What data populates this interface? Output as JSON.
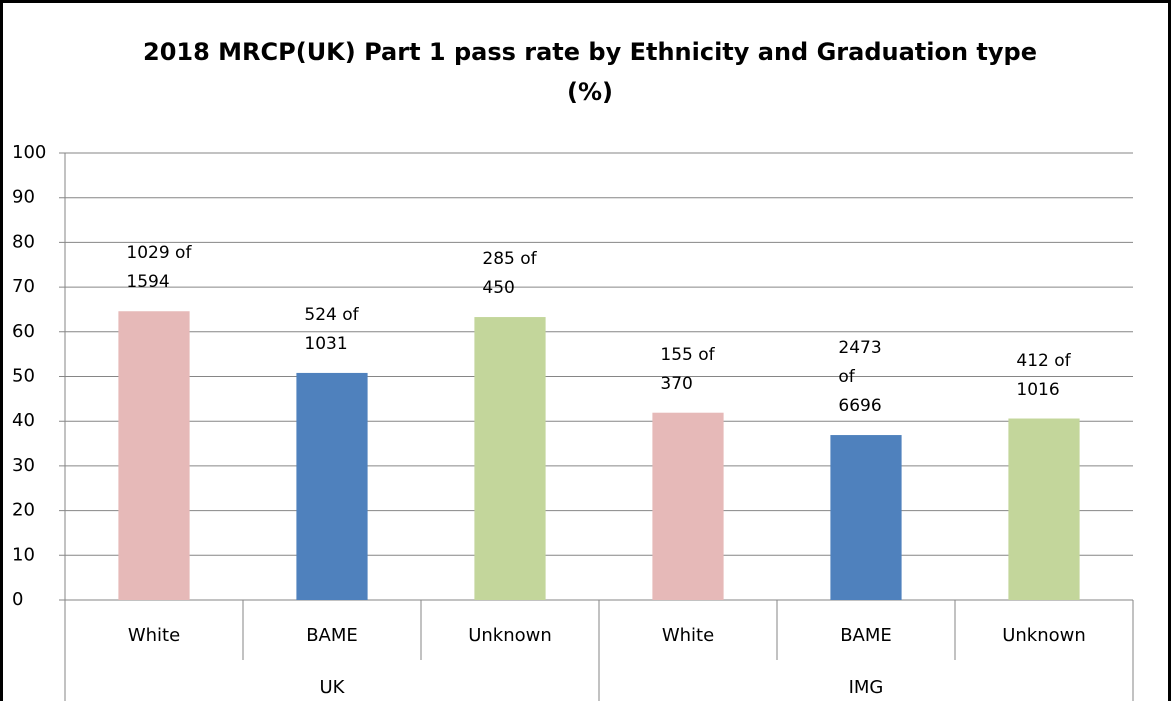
{
  "chart_data": {
    "type": "bar",
    "title": "2018 MRCP(UK) Part 1 pass rate by Ethnicity and Graduation type (%)",
    "categories": [
      "White",
      "BAME",
      "Unknown",
      "White",
      "BAME",
      "Unknown"
    ],
    "groups": [
      "UK",
      "IMG"
    ],
    "values": [
      64.6,
      50.8,
      63.3,
      41.9,
      36.9,
      40.6
    ],
    "annotations": [
      "1029 of 1594",
      "524 of 1031",
      "285 of 450",
      "155 of 370",
      "2473 of 6696",
      "412 of 1016"
    ],
    "colors": [
      "#e6b9b8",
      "#4f81bd",
      "#c3d69b",
      "#e6b9b8",
      "#4f81bd",
      "#c3d69b"
    ],
    "ylim": [
      0,
      100
    ],
    "yticks": [
      0,
      10,
      20,
      30,
      40,
      50,
      60,
      70,
      80,
      90,
      100
    ],
    "grid": true
  }
}
